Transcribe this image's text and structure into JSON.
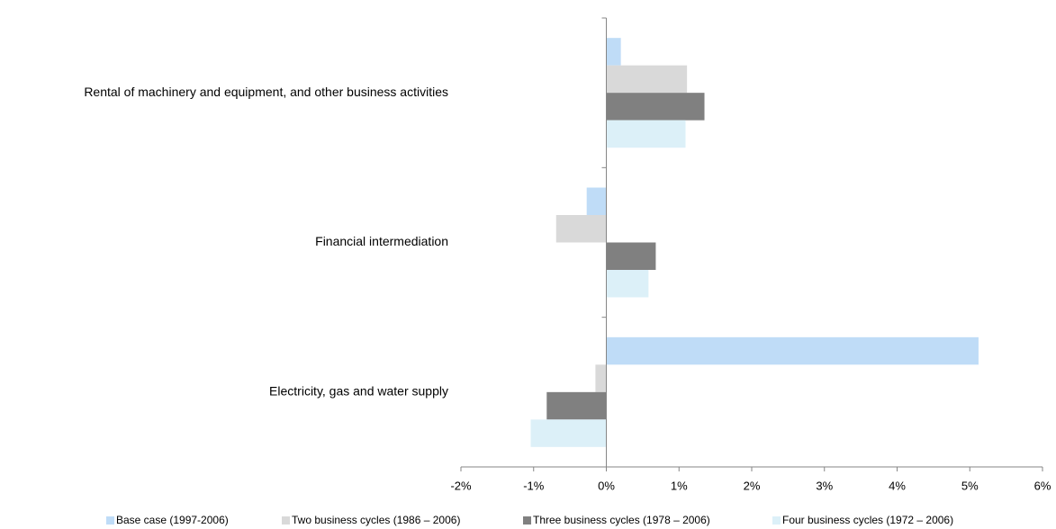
{
  "chart_data": {
    "type": "bar",
    "orientation": "horizontal",
    "categories": [
      "Rental of machinery and equipment, and other business activities",
      "Financial intermediation",
      "Electricity, gas and water supply"
    ],
    "series": [
      {
        "name": "Base case  (1997-2006)",
        "color": "#bfdcf7",
        "values": [
          0.2,
          -0.27,
          5.12
        ]
      },
      {
        "name": "Two business cycles (1986 – 2006)",
        "color": "#d9d9d9",
        "values": [
          1.11,
          -0.69,
          -0.15
        ]
      },
      {
        "name": "Three business cycles (1978 – 2006)",
        "color": "#808080",
        "values": [
          1.35,
          0.68,
          -0.82
        ]
      },
      {
        "name": "Four business cycles (1972 – 2006)",
        "color": "#dcf0f8",
        "values": [
          1.09,
          0.58,
          -1.04
        ]
      }
    ],
    "xlim": [
      -2,
      6
    ],
    "xticks": [
      {
        "value": -2,
        "label": "-2%"
      },
      {
        "value": -1,
        "label": "-1%"
      },
      {
        "value": 0,
        "label": "0%"
      },
      {
        "value": 1,
        "label": "1%"
      },
      {
        "value": 2,
        "label": "2%"
      },
      {
        "value": 3,
        "label": "3%"
      },
      {
        "value": 4,
        "label": "4%"
      },
      {
        "value": 5,
        "label": "5%"
      },
      {
        "value": 6,
        "label": "6%"
      }
    ],
    "legend": "bottom"
  }
}
